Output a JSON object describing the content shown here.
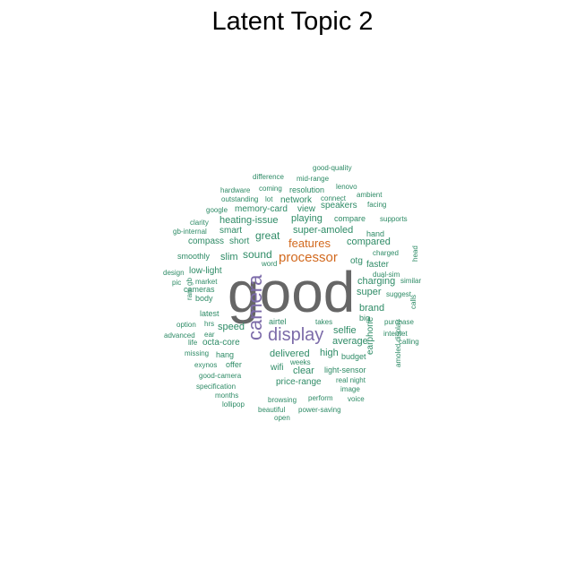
{
  "title": "Latent Topic 2",
  "colors": {
    "xl": "#666666",
    "lg": "#7c6ba9",
    "md": "#d2691e",
    "sm": "#2e8b66"
  },
  "words": [
    {
      "text": "good",
      "level": "xl"
    },
    {
      "text": "camera",
      "level": "lg"
    },
    {
      "text": "display",
      "level": "lg"
    },
    {
      "text": "processor",
      "level": "md"
    },
    {
      "text": "features",
      "level": "md"
    },
    {
      "text": "sound",
      "level": "sm"
    },
    {
      "text": "great",
      "level": "sm"
    },
    {
      "text": "super-amoled",
      "level": "sm"
    },
    {
      "text": "compared",
      "level": "sm"
    },
    {
      "text": "charging",
      "level": "sm"
    },
    {
      "text": "brand",
      "level": "sm"
    },
    {
      "text": "super",
      "level": "sm"
    },
    {
      "text": "selfie",
      "level": "sm"
    },
    {
      "text": "average",
      "level": "sm"
    },
    {
      "text": "high",
      "level": "sm"
    },
    {
      "text": "delivered",
      "level": "sm"
    },
    {
      "text": "speed",
      "level": "sm"
    },
    {
      "text": "octa-core",
      "level": "sm"
    },
    {
      "text": "clear",
      "level": "sm"
    },
    {
      "text": "price-range",
      "level": "sm"
    },
    {
      "text": "heating-issue",
      "level": "sm"
    },
    {
      "text": "playing",
      "level": "sm"
    },
    {
      "text": "smart",
      "level": "sm"
    },
    {
      "text": "slim",
      "level": "sm"
    },
    {
      "text": "memory-card",
      "level": "sm"
    },
    {
      "text": "view",
      "level": "sm"
    },
    {
      "text": "compare",
      "level": "sm"
    },
    {
      "text": "network",
      "level": "sm"
    },
    {
      "text": "resolution",
      "level": "sm"
    },
    {
      "text": "speakers",
      "level": "sm"
    },
    {
      "text": "light-sensor",
      "level": "sm"
    },
    {
      "text": "wifi",
      "level": "sm"
    },
    {
      "text": "earphone",
      "level": "sm"
    },
    {
      "text": "faster",
      "level": "sm"
    },
    {
      "text": "otg",
      "level": "sm"
    },
    {
      "text": "hand",
      "level": "sm"
    },
    {
      "text": "budget",
      "level": "sm"
    },
    {
      "text": "low-light",
      "level": "sm"
    },
    {
      "text": "compass",
      "level": "sm"
    },
    {
      "text": "short",
      "level": "sm"
    },
    {
      "text": "smoothly",
      "level": "sm"
    },
    {
      "text": "latest",
      "level": "sm"
    },
    {
      "text": "hang",
      "level": "sm"
    },
    {
      "text": "offer",
      "level": "sm"
    },
    {
      "text": "cameras",
      "level": "sm"
    },
    {
      "text": "body",
      "level": "sm"
    },
    {
      "text": "market",
      "level": "sm"
    },
    {
      "text": "airtel",
      "level": "sm"
    },
    {
      "text": "big",
      "level": "sm"
    },
    {
      "text": "takes",
      "level": "sm"
    },
    {
      "text": "amoled display",
      "level": "sm"
    },
    {
      "text": "good-quality",
      "level": "sm"
    },
    {
      "text": "difference",
      "level": "sm"
    },
    {
      "text": "mid-range",
      "level": "sm"
    },
    {
      "text": "hardware",
      "level": "sm"
    },
    {
      "text": "coming",
      "level": "sm"
    },
    {
      "text": "lenovo",
      "level": "sm"
    },
    {
      "text": "outstanding",
      "level": "sm"
    },
    {
      "text": "lot",
      "level": "sm"
    },
    {
      "text": "connect",
      "level": "sm"
    },
    {
      "text": "ambient",
      "level": "sm"
    },
    {
      "text": "google",
      "level": "sm"
    },
    {
      "text": "facing",
      "level": "sm"
    },
    {
      "text": "clarity",
      "level": "sm"
    },
    {
      "text": "supports",
      "level": "sm"
    },
    {
      "text": "gb-internal",
      "level": "sm"
    },
    {
      "text": "charged",
      "level": "sm"
    },
    {
      "text": "word",
      "level": "sm"
    },
    {
      "text": "dual-sim",
      "level": "sm"
    },
    {
      "text": "head",
      "level": "sm"
    },
    {
      "text": "design",
      "level": "sm"
    },
    {
      "text": "pic",
      "level": "sm"
    },
    {
      "text": "similar",
      "level": "sm"
    },
    {
      "text": "ram gb",
      "level": "sm"
    },
    {
      "text": "suggest",
      "level": "sm"
    },
    {
      "text": "calls",
      "level": "sm"
    },
    {
      "text": "option",
      "level": "sm"
    },
    {
      "text": "hrs",
      "level": "sm"
    },
    {
      "text": "purchase",
      "level": "sm"
    },
    {
      "text": "advanced",
      "level": "sm"
    },
    {
      "text": "ear",
      "level": "sm"
    },
    {
      "text": "internet",
      "level": "sm"
    },
    {
      "text": "life",
      "level": "sm"
    },
    {
      "text": "calling",
      "level": "sm"
    },
    {
      "text": "missing",
      "level": "sm"
    },
    {
      "text": "exynos",
      "level": "sm"
    },
    {
      "text": "weeks",
      "level": "sm"
    },
    {
      "text": "good-camera",
      "level": "sm"
    },
    {
      "text": "real night",
      "level": "sm"
    },
    {
      "text": "specification",
      "level": "sm"
    },
    {
      "text": "image",
      "level": "sm"
    },
    {
      "text": "months",
      "level": "sm"
    },
    {
      "text": "browsing",
      "level": "sm"
    },
    {
      "text": "perform",
      "level": "sm"
    },
    {
      "text": "voice",
      "level": "sm"
    },
    {
      "text": "lollipop",
      "level": "sm"
    },
    {
      "text": "beautiful",
      "level": "sm"
    },
    {
      "text": "power-saving",
      "level": "sm"
    },
    {
      "text": "open",
      "level": "sm"
    }
  ]
}
